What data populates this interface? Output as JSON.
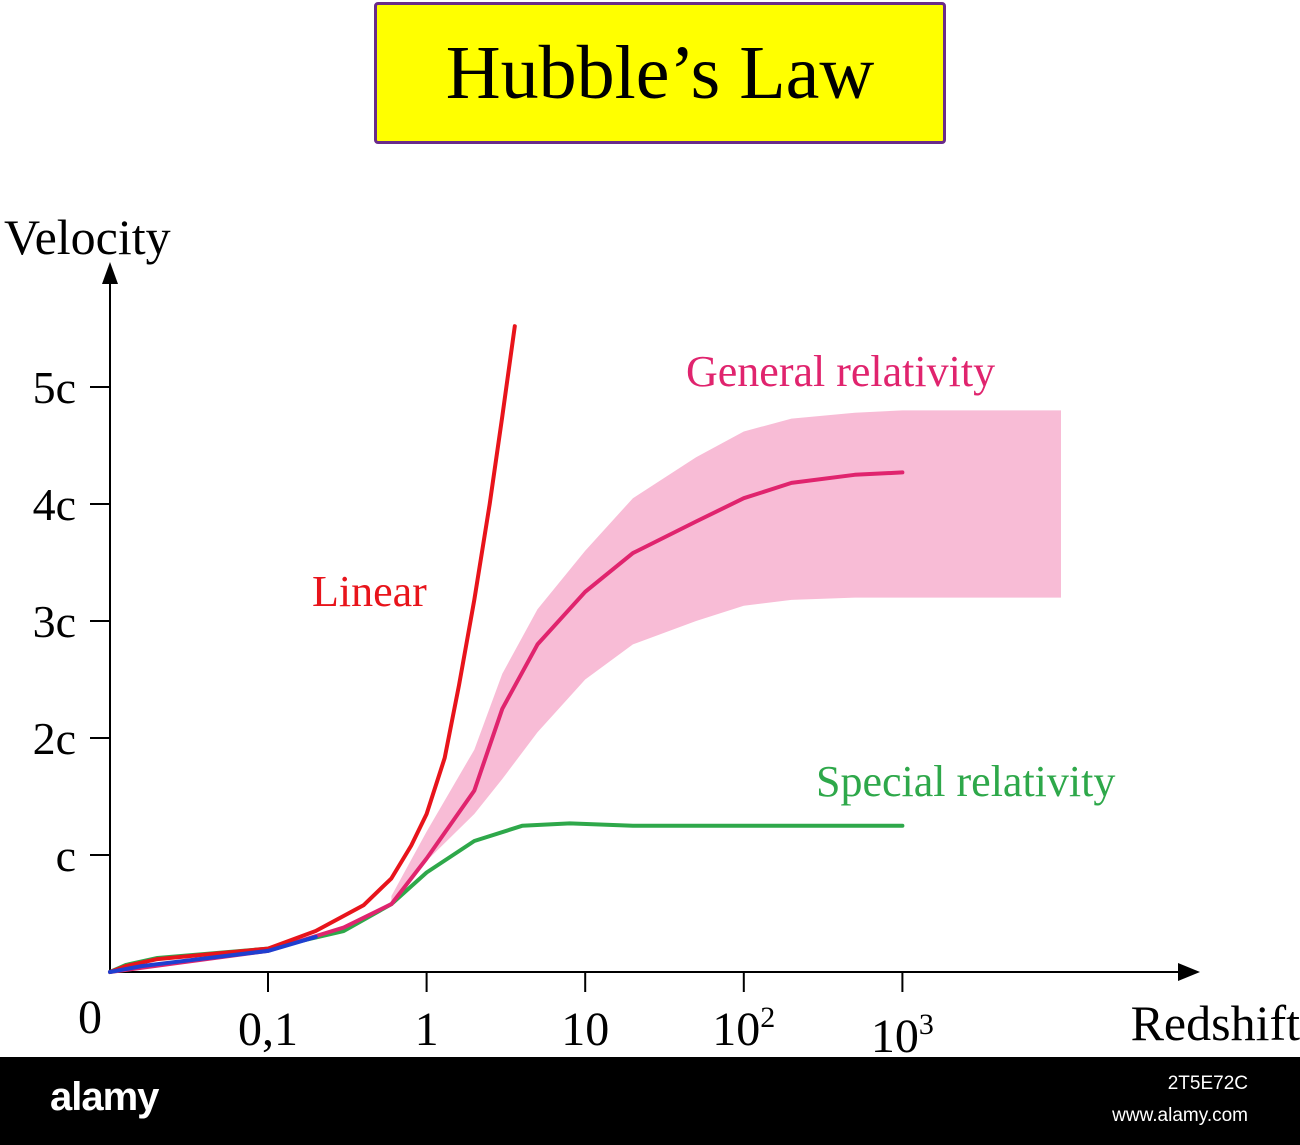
{
  "title": "Hubble’s Law",
  "chart_data": {
    "type": "line",
    "xlabel": "Redshift",
    "ylabel": "Velocity",
    "x_scale": "log",
    "x_ticks": [
      {
        "value": 0,
        "label": "0"
      },
      {
        "value": 0.1,
        "label": "0,1"
      },
      {
        "value": 1,
        "label": "1"
      },
      {
        "value": 10,
        "label": "10"
      },
      {
        "value": 100,
        "label": "10",
        "sup": "2"
      },
      {
        "value": 1000,
        "label": "10",
        "sup": "3"
      }
    ],
    "y_ticks": [
      {
        "value": 1,
        "label": "c"
      },
      {
        "value": 2,
        "label": "2c"
      },
      {
        "value": 3,
        "label": "3c"
      },
      {
        "value": 4,
        "label": "4c"
      },
      {
        "value": 5,
        "label": "5c"
      }
    ],
    "xlim": [
      0,
      10000
    ],
    "ylim": [
      0,
      5.5
    ],
    "grid": false,
    "series": [
      {
        "name": "Linear",
        "color": "#e8141b",
        "x": [
          0,
          0.01,
          0.03,
          0.1,
          0.2,
          0.4,
          0.6,
          0.8,
          1.0,
          1.3,
          1.6,
          2.0,
          2.5,
          3.0,
          3.6
        ],
        "y": [
          0,
          0.05,
          0.11,
          0.2,
          0.35,
          0.57,
          0.8,
          1.08,
          1.35,
          1.83,
          2.45,
          3.18,
          4.0,
          4.75,
          5.52
        ]
      },
      {
        "name": "General relativity",
        "color": "#e0246e",
        "x": [
          0,
          0.1,
          0.3,
          0.6,
          1.0,
          2.0,
          3.0,
          5.0,
          10,
          20,
          50,
          100,
          200,
          500,
          1000
        ],
        "y": [
          0,
          0.18,
          0.38,
          0.58,
          0.97,
          1.55,
          2.25,
          2.8,
          3.25,
          3.58,
          3.85,
          4.05,
          4.18,
          4.25,
          4.27
        ]
      },
      {
        "name": "Special relativity",
        "color": "#2ea84a",
        "x": [
          0,
          0.01,
          0.03,
          0.1,
          0.3,
          0.6,
          1.0,
          2.0,
          4.0,
          8.0,
          20,
          100,
          1000
        ],
        "y": [
          0,
          0.06,
          0.12,
          0.2,
          0.35,
          0.58,
          0.85,
          1.12,
          1.25,
          1.27,
          1.25,
          1.25,
          1.25
        ]
      },
      {
        "color": "#1f3fd0",
        "x": [
          0,
          0.02,
          0.05,
          0.1,
          0.2
        ],
        "y": [
          0,
          0.05,
          0.1,
          0.18,
          0.3
        ]
      }
    ],
    "band": {
      "series": "General relativity",
      "color": "#f8bcd6",
      "upper": {
        "x": [
          0.6,
          1.0,
          2.0,
          3.0,
          5.0,
          10,
          20,
          50,
          100,
          200,
          500,
          1000,
          2000,
          3000,
          10000
        ],
        "y": [
          0.65,
          1.2,
          1.9,
          2.55,
          3.1,
          3.6,
          4.05,
          4.4,
          4.62,
          4.73,
          4.78,
          4.8,
          4.8,
          4.8,
          4.8
        ]
      },
      "lower": {
        "x": [
          0.6,
          1.0,
          2.0,
          3.0,
          5.0,
          10,
          20,
          50,
          100,
          200,
          500,
          1000,
          2000,
          10000
        ],
        "y": [
          0.6,
          0.95,
          1.35,
          1.65,
          2.05,
          2.5,
          2.8,
          3.0,
          3.13,
          3.18,
          3.2,
          3.2,
          3.2,
          3.2
        ]
      }
    }
  },
  "watermark": {
    "brand": "alamy",
    "image_id": "2T5E72C",
    "url": "www.alamy.com"
  }
}
